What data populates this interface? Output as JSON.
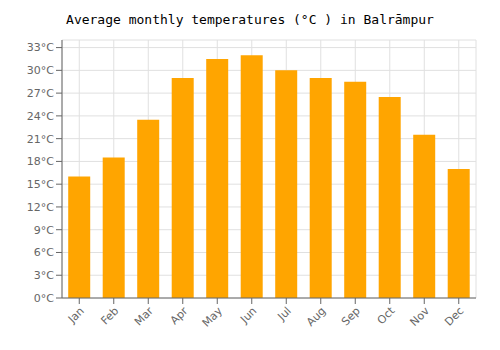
{
  "chart_data": {
    "type": "bar",
    "title": "Average monthly temperatures (°C ) in Balrāmpur",
    "categories": [
      "Jan",
      "Feb",
      "Mar",
      "Apr",
      "May",
      "Jun",
      "Jul",
      "Aug",
      "Sep",
      "Oct",
      "Nov",
      "Dec"
    ],
    "values": [
      16.0,
      18.5,
      23.5,
      29.0,
      31.5,
      32.0,
      30.0,
      29.0,
      28.5,
      26.5,
      21.5,
      17.0
    ],
    "color": "#FFA500",
    "ylim": [
      0,
      34
    ],
    "yticks": [
      {
        "value": 0,
        "label": "0°C"
      },
      {
        "value": 3,
        "label": "3°C"
      },
      {
        "value": 6,
        "label": "6°C"
      },
      {
        "value": 9,
        "label": "9°C"
      },
      {
        "value": 12,
        "label": "12°C"
      },
      {
        "value": 15,
        "label": "15°C"
      },
      {
        "value": 18,
        "label": "18°C"
      },
      {
        "value": 21,
        "label": "21°C"
      },
      {
        "value": 24,
        "label": "24°C"
      },
      {
        "value": 27,
        "label": "27°C"
      },
      {
        "value": 30,
        "label": "30°C"
      },
      {
        "value": 33,
        "label": "33°C"
      }
    ],
    "grid": true
  }
}
